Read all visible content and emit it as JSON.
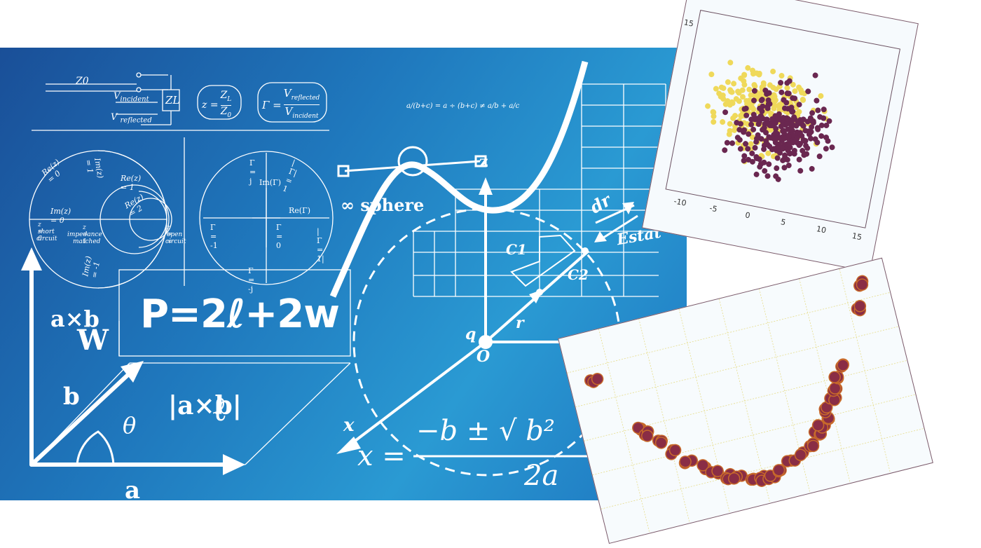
{
  "board": {
    "circuit": {
      "z0": "Z0",
      "zl": "ZL",
      "v_incident": "V",
      "v_incident_sub": "incident",
      "v_reflected": "V",
      "v_reflected_sub": "reflected"
    },
    "formula_z": {
      "lhs": "z =",
      "num": "Z",
      "num_sub": "L",
      "den": "Z",
      "den_sub": "0"
    },
    "formula_gamma": {
      "lhs": "Γ =",
      "num": "V",
      "num_sub": "reflected",
      "den": "V",
      "den_sub": "incident"
    },
    "small_identity": "a/(b+c) = a ÷ (b+c) ≠ a/b + a/c",
    "smith_chart": {
      "labels": [
        "Re(z) = 0",
        "Im(z) = 1",
        "Re(z) = 1",
        "Re(z) = 2",
        "Im(z) = 0",
        "z = 0",
        "short",
        "circuit",
        "z = 1",
        "impedance",
        "matched",
        "z = ∞",
        "open",
        "circuit",
        "Im(z) = -1"
      ]
    },
    "gamma_plane": {
      "labels": [
        "Γ = j",
        "|Γ| = 1",
        "Im(Γ)",
        "Re(Γ)",
        "Γ = -1",
        "Γ = 0",
        "|Γ = 1|",
        "Γ = -j"
      ]
    },
    "perimeter": "P=2ℓ+2w",
    "cross": {
      "axb": "a×b",
      "w": "W",
      "b": "b",
      "a": "a",
      "theta": "θ",
      "abs": "|a×b|",
      "l": "ℓ"
    },
    "field": {
      "sphere": "∞ sphere",
      "dr": "dr",
      "estat": "Estat",
      "q": "q",
      "o": "O",
      "r": "r",
      "c1": "C1",
      "c2": "C2",
      "z": "z",
      "x": "x"
    },
    "quadratic": {
      "lhs": "x =",
      "num": "−b ± √ b²",
      "den": "2a"
    }
  },
  "scatter_top": {
    "chart_data": {
      "type": "scatter",
      "x_ticks": [
        "-10",
        "-5",
        "0",
        "5",
        "10",
        "15"
      ],
      "y_ticks": [
        "15"
      ],
      "series": [
        {
          "color": "#efd95a"
        },
        {
          "color": "#6a2750"
        }
      ]
    }
  },
  "scatter_bottom": {
    "chart_data": {
      "type": "scatter",
      "marker_color": "#8a2d45",
      "x": [
        -2.6,
        -2.0,
        -1.9,
        -1.7,
        -1.5,
        -1.3,
        -1.1,
        -0.9,
        -0.7,
        -0.5,
        -0.3,
        -0.1,
        0.1,
        0.3,
        0.5,
        0.7,
        0.9,
        1.1,
        1.2,
        1.3,
        1.4,
        1.5,
        1.6,
        1.7,
        1.8,
        2.4,
        2.5
      ],
      "y": [
        6.3,
        3.6,
        3.3,
        2.8,
        2.2,
        1.6,
        1.2,
        0.8,
        0.5,
        0.3,
        0.1,
        0.0,
        0.05,
        0.2,
        0.4,
        0.7,
        1.0,
        1.4,
        1.7,
        2.0,
        2.4,
        2.8,
        3.2,
        3.7,
        4.2,
        6.5,
        7.6
      ]
    }
  }
}
